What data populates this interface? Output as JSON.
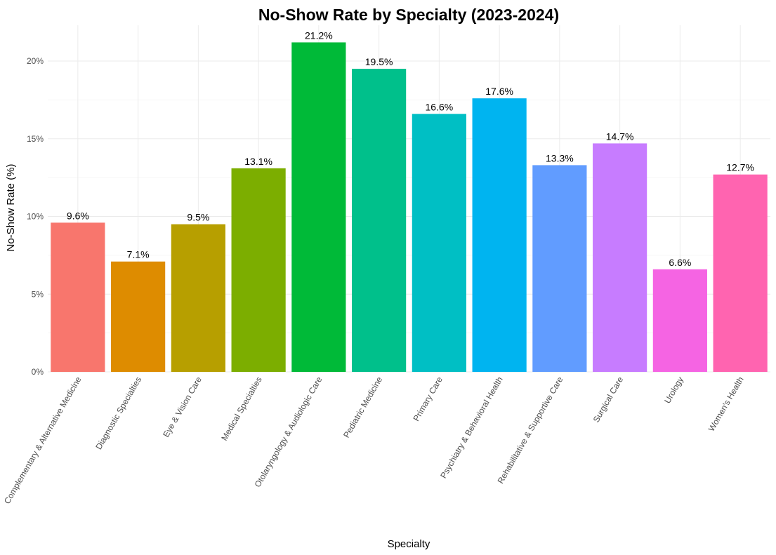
{
  "chart_data": {
    "type": "bar",
    "title": "No-Show Rate by Specialty (2023-2024)",
    "xlabel": "Specialty",
    "ylabel": "No-Show Rate (%)",
    "ylim": [
      0,
      22
    ],
    "yticks": [
      0,
      5,
      10,
      15,
      20
    ],
    "ytick_labels": [
      "0%",
      "5%",
      "10%",
      "15%",
      "20%"
    ],
    "grid": true,
    "legend": "none",
    "categories": [
      "Complementary & Alternative Medicine",
      "Diagnostic Specialties",
      "Eye & Vision Care",
      "Medical Specialties",
      "Otolaryngology & Audiologic Care",
      "Pediatric Medicine",
      "Primary Care",
      "Psychiatry & Behavioral Health",
      "Rehabilitative & Supportive Care",
      "Surgical Care",
      "Urology",
      "Women's Health"
    ],
    "values": [
      9.6,
      7.1,
      9.5,
      13.1,
      21.2,
      19.5,
      16.6,
      17.6,
      13.3,
      14.7,
      6.6,
      12.7
    ],
    "data_labels": [
      "9.6%",
      "7.1%",
      "9.5%",
      "13.1%",
      "21.2%",
      "19.5%",
      "16.6%",
      "17.6%",
      "13.3%",
      "14.7%",
      "6.6%",
      "12.7%"
    ],
    "colors": [
      "#F8766D",
      "#DE8C00",
      "#B79F00",
      "#7CAE00",
      "#00BA38",
      "#00C08B",
      "#00BFC4",
      "#00B4F0",
      "#619CFF",
      "#C77CFF",
      "#F564E3",
      "#FF64B0"
    ]
  }
}
